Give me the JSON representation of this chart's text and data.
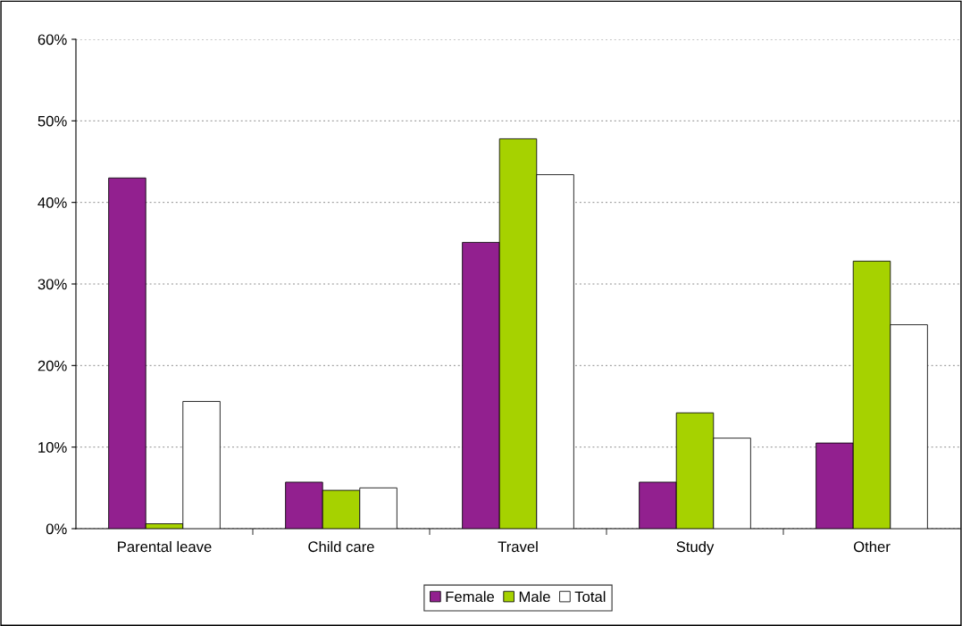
{
  "chart_data": {
    "type": "bar",
    "categories": [
      "Parental leave",
      "Child care",
      "Travel",
      "Study",
      "Other"
    ],
    "series": [
      {
        "name": "Female",
        "color": "#92208f",
        "values": [
          43.0,
          5.7,
          35.1,
          5.7,
          10.5
        ]
      },
      {
        "name": "Male",
        "color": "#a6d200",
        "values": [
          0.6,
          4.7,
          47.8,
          14.2,
          32.8
        ]
      },
      {
        "name": "Total",
        "color": "#ffffff",
        "values": [
          15.6,
          5.0,
          43.4,
          11.1,
          25.0
        ]
      }
    ],
    "ylim": [
      0,
      60
    ],
    "yticks": [
      {
        "value": 0,
        "label": "0%"
      },
      {
        "value": 10,
        "label": "10%"
      },
      {
        "value": 20,
        "label": "20%"
      },
      {
        "value": 30,
        "label": "30%"
      },
      {
        "value": 40,
        "label": "40%"
      },
      {
        "value": 50,
        "label": "50%"
      },
      {
        "value": 60,
        "label": "60%"
      }
    ],
    "grid": "y",
    "legend": "bottom"
  }
}
